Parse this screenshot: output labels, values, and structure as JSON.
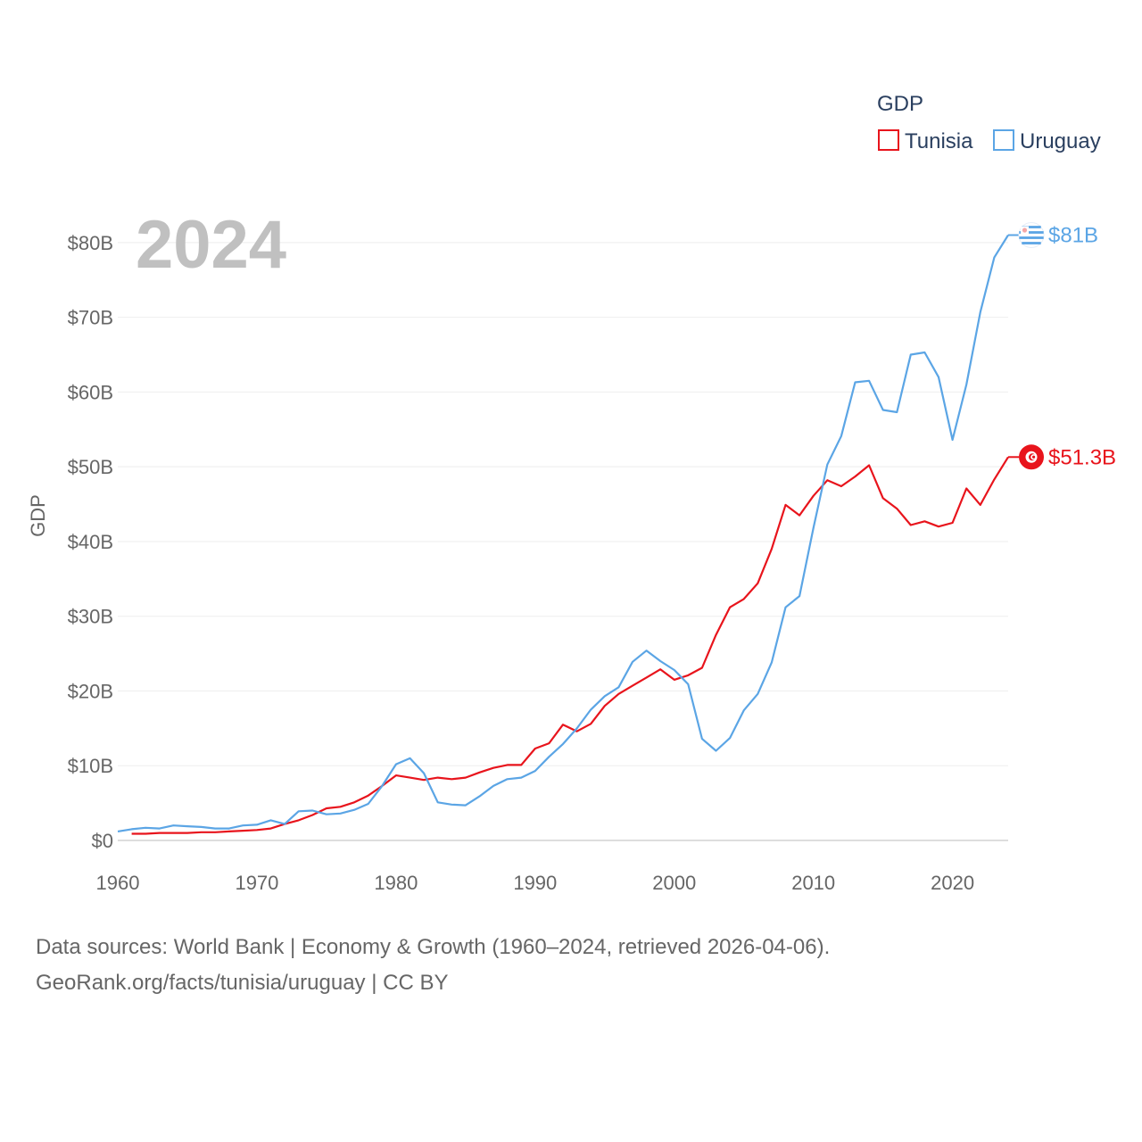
{
  "chart_data": {
    "type": "line",
    "legend_title": "GDP",
    "ylabel": "GDP",
    "xlabel": "",
    "year_overlay": "2024",
    "xlim": [
      1960,
      2024
    ],
    "ylim": [
      0,
      85
    ],
    "x_ticks": [
      1960,
      1970,
      1980,
      1990,
      2000,
      2010,
      2020
    ],
    "x_tick_labels": [
      "1960",
      "1970",
      "1980",
      "1990",
      "2000",
      "2010",
      "2020"
    ],
    "y_ticks": [
      0,
      10,
      20,
      30,
      40,
      50,
      60,
      70,
      80
    ],
    "y_tick_labels": [
      "$0",
      "$10B",
      "$20B",
      "$30B",
      "$40B",
      "$50B",
      "$60B",
      "$70B",
      "$80B"
    ],
    "legend_placement": "top-right",
    "unit": "billion USD",
    "series": [
      {
        "name": "Tunisia",
        "color": "#e8141c",
        "start_year": 1961,
        "end_label": "$51.3B",
        "values": [
          0.9,
          0.9,
          1.0,
          1.0,
          1.0,
          1.1,
          1.1,
          1.2,
          1.3,
          1.4,
          1.6,
          2.2,
          2.7,
          3.4,
          4.3,
          4.5,
          5.1,
          6.0,
          7.3,
          8.7,
          8.4,
          8.1,
          8.4,
          8.2,
          8.4,
          9.1,
          9.7,
          10.1,
          10.1,
          12.3,
          13.0,
          15.5,
          14.6,
          15.6,
          18.0,
          19.6,
          20.7,
          21.8,
          22.9,
          21.5,
          22.1,
          23.1,
          27.5,
          31.2,
          32.3,
          34.4,
          39.0,
          44.9,
          43.5,
          46.1,
          48.2,
          47.4,
          48.7,
          50.2,
          45.8,
          44.4,
          42.2,
          42.7,
          42.0,
          42.5,
          47.1,
          44.9,
          48.3,
          51.3
        ]
      },
      {
        "name": "Uruguay",
        "color": "#5ba5e5",
        "start_year": 1960,
        "end_label": "$81B",
        "values": [
          1.2,
          1.5,
          1.7,
          1.6,
          2.0,
          1.9,
          1.8,
          1.6,
          1.6,
          2.0,
          2.1,
          2.7,
          2.2,
          3.9,
          4.0,
          3.5,
          3.6,
          4.1,
          4.9,
          7.3,
          10.2,
          11.0,
          9.0,
          5.1,
          4.8,
          4.7,
          5.9,
          7.3,
          8.2,
          8.4,
          9.3,
          11.2,
          12.9,
          15.0,
          17.5,
          19.3,
          20.5,
          23.9,
          25.4,
          24.0,
          22.8,
          20.9,
          13.6,
          12.0,
          13.7,
          17.4,
          19.6,
          23.8,
          31.2,
          32.7,
          41.8,
          50.3,
          54.1,
          61.3,
          61.5,
          57.6,
          57.3,
          65.0,
          65.3,
          62.0,
          53.6,
          61.0,
          70.7,
          78.0,
          81.0
        ]
      }
    ]
  },
  "footer": {
    "line1": "Data sources: World Bank | Economy & Growth (1960–2024, retrieved 2026-04-06).",
    "line2": "GeoRank.org/facts/tunisia/uruguay | CC BY"
  }
}
